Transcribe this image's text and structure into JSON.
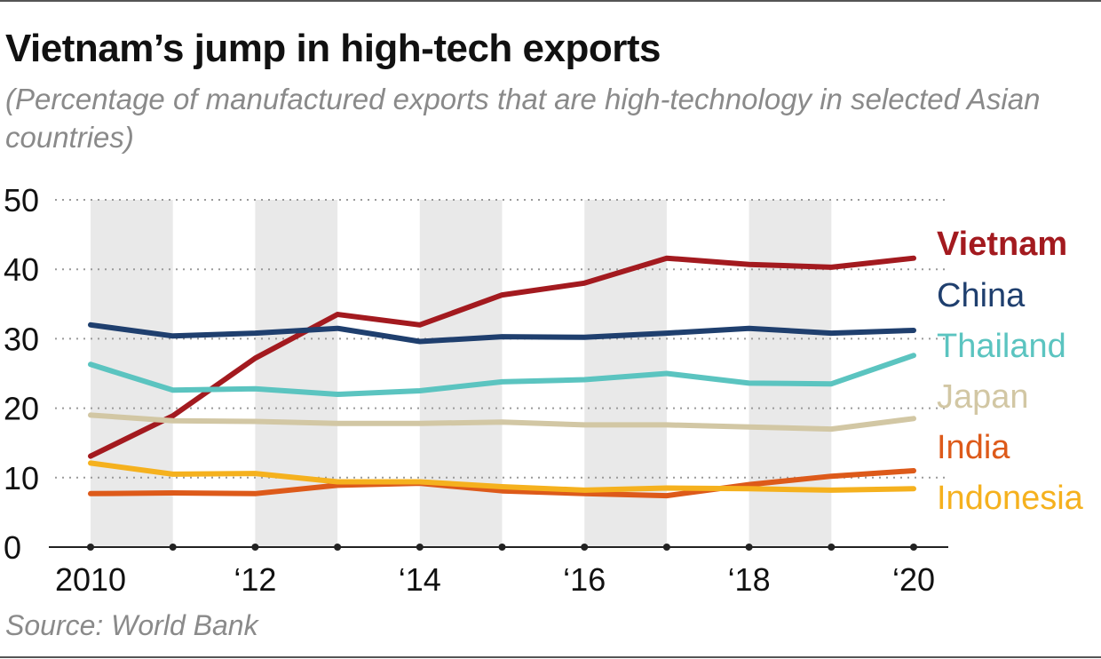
{
  "header": {
    "title": "Vietnam’s jump in high-tech exports",
    "subtitle": "(Percentage of manufactured exports that are high-technology in selected Asian countries)"
  },
  "footer": {
    "source": "Source: World Bank"
  },
  "chart_data": {
    "type": "line",
    "title": "Vietnam’s jump in high-tech exports",
    "subtitle": "(Percentage of manufactured exports that are high-technology in selected Asian countries)",
    "xlabel": "",
    "ylabel": "",
    "x": [
      2010,
      2011,
      2012,
      2013,
      2014,
      2015,
      2016,
      2017,
      2018,
      2019,
      2020
    ],
    "x_tick_values": [
      2010,
      2012,
      2014,
      2016,
      2018,
      2020
    ],
    "x_tick_labels": [
      "2010",
      "‘12",
      "‘14",
      "‘16",
      "‘18",
      "‘20"
    ],
    "xlim": [
      2010,
      2020
    ],
    "ylim": [
      0,
      50
    ],
    "y_ticks": [
      0,
      10,
      20,
      30,
      40,
      50
    ],
    "grid": true,
    "alternating_year_shading": true,
    "legend_placement": "right, labels at line ends",
    "series": [
      {
        "name": "Vietnam",
        "color": "#a31a1f",
        "bold": true,
        "values": [
          13.1,
          18.9,
          27.2,
          33.5,
          32.0,
          36.3,
          38.0,
          41.6,
          40.7,
          40.3,
          41.6
        ]
      },
      {
        "name": "China",
        "color": "#1f3f6e",
        "values": [
          32.0,
          30.4,
          30.8,
          31.5,
          29.6,
          30.3,
          30.2,
          30.8,
          31.5,
          30.8,
          31.2
        ]
      },
      {
        "name": "Thailand",
        "color": "#5bc4c0",
        "values": [
          26.3,
          22.6,
          22.8,
          22.0,
          22.5,
          23.8,
          24.1,
          25.0,
          23.6,
          23.5,
          27.6
        ]
      },
      {
        "name": "Japan",
        "color": "#d2c7a4",
        "values": [
          19.0,
          18.2,
          18.1,
          17.8,
          17.8,
          18.0,
          17.6,
          17.6,
          17.3,
          17.0,
          18.5
        ]
      },
      {
        "name": "India",
        "color": "#dd5a1a",
        "values": [
          7.7,
          7.8,
          7.7,
          8.9,
          9.2,
          8.1,
          7.7,
          7.4,
          9.0,
          10.2,
          11.0
        ]
      },
      {
        "name": "Indonesia",
        "color": "#f5b11e",
        "values": [
          12.1,
          10.5,
          10.6,
          9.4,
          9.4,
          8.7,
          8.2,
          8.5,
          8.4,
          8.2,
          8.4
        ]
      }
    ]
  }
}
